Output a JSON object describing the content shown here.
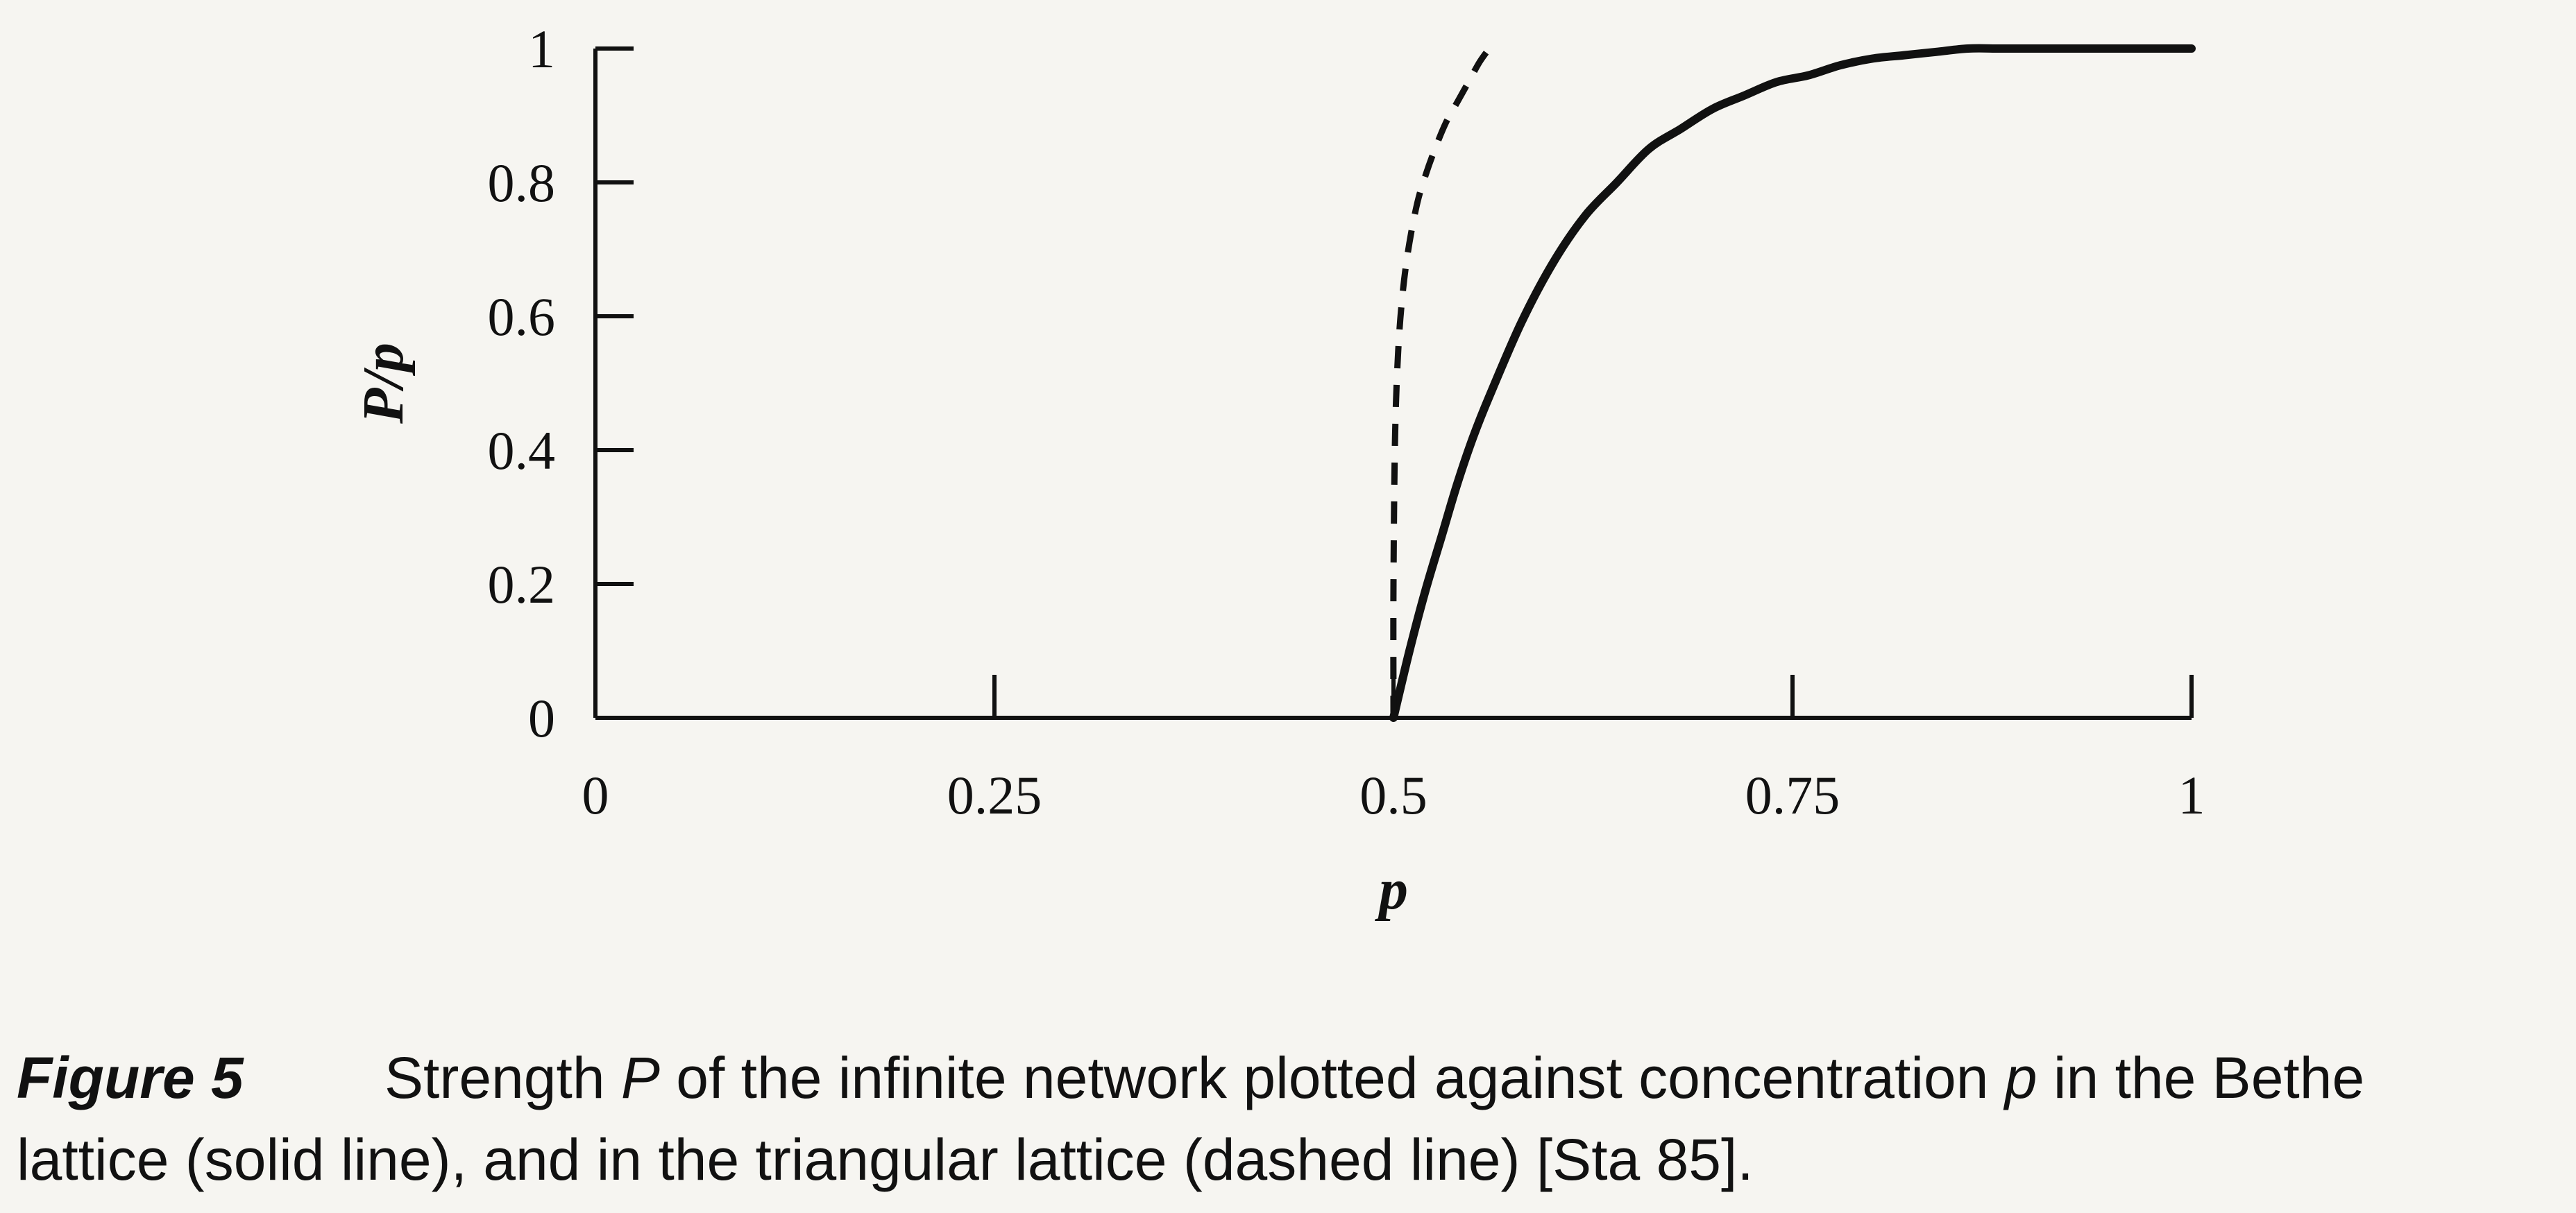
{
  "chart_data": {
    "type": "line",
    "title": "",
    "xlabel": "p",
    "ylabel": "P/p",
    "xlim": [
      0,
      1
    ],
    "ylim": [
      0,
      1
    ],
    "x_ticks": [
      0,
      0.25,
      0.5,
      0.75,
      1
    ],
    "x_tick_labels": [
      "0",
      "0.25",
      "0.5",
      "0.75",
      "1"
    ],
    "y_ticks": [
      0,
      0.2,
      0.4,
      0.6,
      0.8,
      1
    ],
    "y_tick_labels": [
      "0",
      "0.2",
      "0.4",
      "0.6",
      "0.8",
      "1"
    ],
    "grid": false,
    "legend": "none",
    "series": [
      {
        "style": "solid",
        "color": "#111111",
        "x": [
          0.5,
          0.51,
          0.52,
          0.53,
          0.54,
          0.55,
          0.56,
          0.58,
          0.6,
          0.62,
          0.64,
          0.66,
          0.68,
          0.7,
          0.72,
          0.74,
          0.76,
          0.78,
          0.8,
          0.82,
          0.84,
          0.86,
          0.88,
          0.9,
          0.93,
          0.96,
          1.0
        ],
        "y": [
          0.0,
          0.1,
          0.19,
          0.27,
          0.35,
          0.42,
          0.48,
          0.59,
          0.68,
          0.75,
          0.8,
          0.85,
          0.88,
          0.91,
          0.93,
          0.95,
          0.96,
          0.975,
          0.985,
          0.99,
          0.995,
          1.0,
          1.0,
          1.0,
          1.0,
          1.0,
          1.0
        ]
      },
      {
        "style": "dashed",
        "color": "#111111",
        "x": [
          0.5,
          0.5,
          0.501,
          0.503,
          0.506,
          0.51,
          0.515,
          0.52,
          0.526,
          0.533,
          0.54,
          0.547,
          0.554,
          0.56
        ],
        "y": [
          0.0,
          0.2,
          0.42,
          0.55,
          0.64,
          0.71,
          0.77,
          0.81,
          0.85,
          0.89,
          0.92,
          0.95,
          0.98,
          1.0
        ]
      }
    ]
  },
  "caption": {
    "label": "Figure 5",
    "line1_a": "Strength ",
    "line1_sym1": "P",
    "line1_b": " of the infinite network plotted against concentration ",
    "line1_sym2": "p",
    "line1_c": " in the Bethe",
    "line2": "lattice (solid line), and in the triangular lattice (dashed line) [Sta 85]."
  }
}
